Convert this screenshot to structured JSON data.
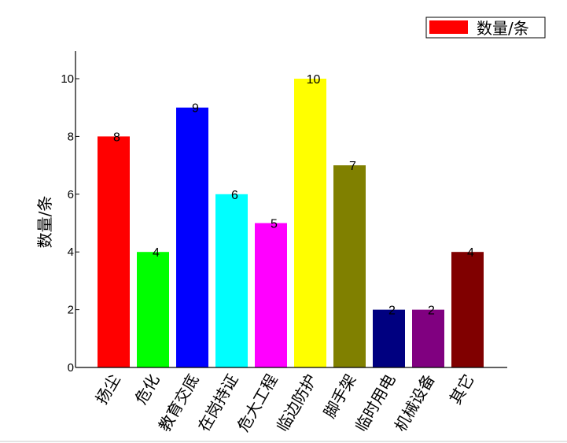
{
  "chart_data": {
    "type": "bar",
    "categories": [
      "扬尘",
      "危化",
      "教育交底",
      "在岗持证",
      "危大工程",
      "临边防护",
      "脚手架",
      "临时用电",
      "机械设备",
      "其它"
    ],
    "series": [
      {
        "name": "数量/条",
        "values": [
          8,
          4,
          9,
          6,
          5,
          10,
          7,
          2,
          2,
          4
        ],
        "colors": [
          "#ff0000",
          "#00ff00",
          "#0000ff",
          "#00ffff",
          "#ff00ff",
          "#ffff00",
          "#808000",
          "#000080",
          "#800080",
          "#800000"
        ]
      }
    ],
    "xlabel": "",
    "ylabel": "数量/条",
    "ylim": [
      0,
      11
    ],
    "yticks": [
      0,
      2,
      4,
      6,
      8,
      10
    ],
    "legend_position": "top-right",
    "legend_swatch_color": "#ff0000",
    "grid": false
  }
}
